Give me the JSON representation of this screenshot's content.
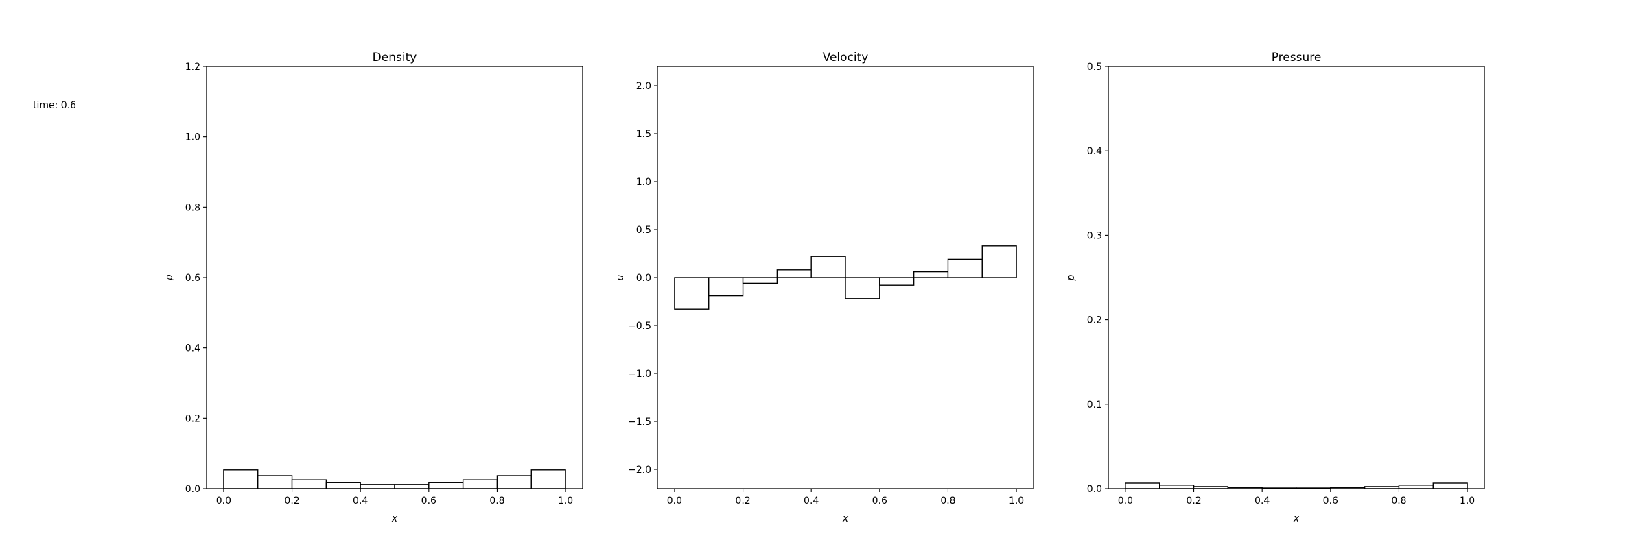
{
  "annotation": {
    "time_text": "time: 0.6"
  },
  "chart_data": [
    {
      "type": "bar",
      "title": "Density",
      "xlabel": "x",
      "ylabel": "ρ",
      "bin_edges": [
        0.0,
        0.1,
        0.2,
        0.3,
        0.4,
        0.5,
        0.6,
        0.7,
        0.8,
        0.9,
        1.0
      ],
      "values": [
        0.053,
        0.037,
        0.025,
        0.017,
        0.012,
        0.012,
        0.017,
        0.025,
        0.037,
        0.053
      ],
      "xlim": [
        -0.05,
        1.05
      ],
      "ylim": [
        0,
        1.2
      ],
      "xticks": [
        0.0,
        0.2,
        0.4,
        0.6,
        0.8,
        1.0
      ],
      "xtick_labels": [
        "0.0",
        "0.2",
        "0.4",
        "0.6",
        "0.8",
        "1.0"
      ],
      "yticks": [
        0.0,
        0.2,
        0.4,
        0.6,
        0.8,
        1.0,
        1.2
      ],
      "ytick_labels": [
        "0.0",
        "0.2",
        "0.4",
        "0.6",
        "0.8",
        "1.0",
        "1.2"
      ],
      "grid": false,
      "bar_fill": "#ffffff",
      "bar_edge": "#000000"
    },
    {
      "type": "bar",
      "title": "Velocity",
      "xlabel": "x",
      "ylabel": "u",
      "bin_edges": [
        0.0,
        0.1,
        0.2,
        0.3,
        0.4,
        0.5,
        0.6,
        0.7,
        0.8,
        0.9,
        1.0
      ],
      "values": [
        -0.33,
        -0.19,
        -0.06,
        0.08,
        0.22,
        -0.22,
        -0.08,
        0.06,
        0.19,
        0.33
      ],
      "xlim": [
        -0.05,
        1.05
      ],
      "ylim": [
        -2.2,
        2.2
      ],
      "xticks": [
        0.0,
        0.2,
        0.4,
        0.6,
        0.8,
        1.0
      ],
      "xtick_labels": [
        "0.0",
        "0.2",
        "0.4",
        "0.6",
        "0.8",
        "1.0"
      ],
      "yticks": [
        -2.0,
        -1.5,
        -1.0,
        -0.5,
        0.0,
        0.5,
        1.0,
        1.5,
        2.0
      ],
      "ytick_labels": [
        "−2.0",
        "−1.5",
        "−1.0",
        "−0.5",
        "0.0",
        "0.5",
        "1.0",
        "1.5",
        "2.0"
      ],
      "grid": false,
      "bar_fill": "#ffffff",
      "bar_edge": "#000000"
    },
    {
      "type": "bar",
      "title": "Pressure",
      "xlabel": "x",
      "ylabel": "p",
      "bin_edges": [
        0.0,
        0.1,
        0.2,
        0.3,
        0.4,
        0.5,
        0.6,
        0.7,
        0.8,
        0.9,
        1.0
      ],
      "values": [
        0.0065,
        0.0042,
        0.0025,
        0.0014,
        0.0008,
        0.0008,
        0.0014,
        0.0025,
        0.0042,
        0.0065
      ],
      "xlim": [
        -0.05,
        1.05
      ],
      "ylim": [
        0,
        0.5
      ],
      "xticks": [
        0.0,
        0.2,
        0.4,
        0.6,
        0.8,
        1.0
      ],
      "xtick_labels": [
        "0.0",
        "0.2",
        "0.4",
        "0.6",
        "0.8",
        "1.0"
      ],
      "yticks": [
        0.0,
        0.1,
        0.2,
        0.3,
        0.4,
        0.5
      ],
      "ytick_labels": [
        "0.0",
        "0.1",
        "0.2",
        "0.3",
        "0.4",
        "0.5"
      ],
      "grid": false,
      "bar_fill": "#ffffff",
      "bar_edge": "#000000"
    }
  ]
}
